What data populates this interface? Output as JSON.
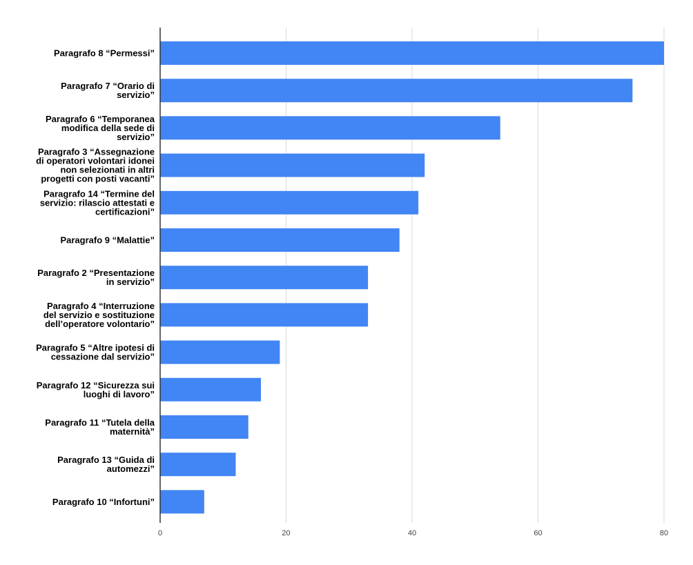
{
  "chart_data": {
    "type": "bar",
    "orientation": "horizontal",
    "title": "",
    "xlabel": "",
    "ylabel": "",
    "xlim": [
      0,
      80
    ],
    "x_ticks": [
      "0",
      "20",
      "40",
      "60",
      "80"
    ],
    "grid": true,
    "legend": "none",
    "bar_color": "#4285F4",
    "categories": [
      [
        "Paragrafo 8 “Permessi”"
      ],
      [
        "Paragrafo 7 “Orario di",
        "servizio”"
      ],
      [
        "Paragrafo 6 “Temporanea",
        "modifica della sede di",
        "servizio”"
      ],
      [
        "Paragrafo 3 “Assegnazione",
        "di operatori volontari idonei",
        "non selezionati in altri",
        "progetti con posti vacanti”"
      ],
      [
        "Paragrafo 14 “Termine del",
        "servizio: rilascio attestati e",
        "certificazioni”"
      ],
      [
        "Paragrafo 9 “Malattie”"
      ],
      [
        "Paragrafo 2 “Presentazione",
        "in servizio”"
      ],
      [
        "Paragrafo 4 “Interruzione",
        "del servizio e sostituzione",
        "dell’operatore volontario”"
      ],
      [
        "Paragrafo 5 “Altre ipotesi di",
        "cessazione dal servizio”"
      ],
      [
        "Paragrafo 12 “Sicurezza sui",
        "luoghi di lavoro”"
      ],
      [
        "Paragrafo 11 “Tutela della",
        "maternità”"
      ],
      [
        "Paragrafo 13 “Guida di",
        "automezzi”"
      ],
      [
        "Paragrafo 10 “Infortuni”"
      ]
    ],
    "values": [
      80,
      75,
      54,
      42,
      41,
      38,
      33,
      33,
      19,
      16,
      14,
      12,
      7
    ]
  }
}
